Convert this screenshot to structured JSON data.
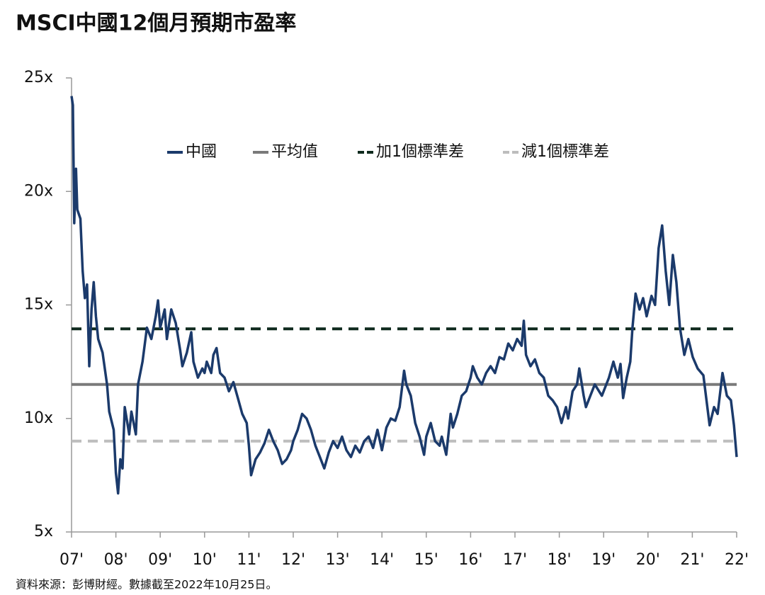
{
  "chart_data": {
    "type": "line",
    "title": "MSCI中國12個月預期市盈率",
    "note": "資料來源：彭博財經。數據截至2022年10月25日。",
    "xlim": [
      2007,
      2022
    ],
    "xticks": [
      {
        "value": 2007,
        "label": "07'"
      },
      {
        "value": 2008,
        "label": "08'"
      },
      {
        "value": 2009,
        "label": "09'"
      },
      {
        "value": 2010,
        "label": "10'"
      },
      {
        "value": 2011,
        "label": "11'"
      },
      {
        "value": 2012,
        "label": "12'"
      },
      {
        "value": 2013,
        "label": "13'"
      },
      {
        "value": 2014,
        "label": "14'"
      },
      {
        "value": 2015,
        "label": "15'"
      },
      {
        "value": 2016,
        "label": "16'"
      },
      {
        "value": 2017,
        "label": "17'"
      },
      {
        "value": 2018,
        "label": "18'"
      },
      {
        "value": 2019,
        "label": "19'"
      },
      {
        "value": 2020,
        "label": "20'"
      },
      {
        "value": 2021,
        "label": "21'"
      },
      {
        "value": 2022,
        "label": "22'"
      }
    ],
    "ylim": [
      5,
      25
    ],
    "yticks": [
      {
        "value": 5,
        "label": "5x"
      },
      {
        "value": 10,
        "label": "10x"
      },
      {
        "value": 15,
        "label": "15x"
      },
      {
        "value": 20,
        "label": "20x"
      },
      {
        "value": 25,
        "label": "25x"
      }
    ],
    "legend": "top",
    "series": [
      {
        "name": "中國",
        "color": "#1b3a6b",
        "dash": false,
        "x": [
          2007.0,
          2007.03,
          2007.06,
          2007.1,
          2007.13,
          2007.2,
          2007.25,
          2007.3,
          2007.35,
          2007.4,
          2007.45,
          2007.5,
          2007.55,
          2007.6,
          2007.7,
          2007.8,
          2007.85,
          2007.95,
          2008.0,
          2008.05,
          2008.1,
          2008.15,
          2008.2,
          2008.3,
          2008.35,
          2008.45,
          2008.5,
          2008.6,
          2008.7,
          2008.8,
          2008.9,
          2008.95,
          2009.0,
          2009.1,
          2009.15,
          2009.25,
          2009.35,
          2009.45,
          2009.5,
          2009.6,
          2009.7,
          2009.75,
          2009.85,
          2009.95,
          2010.0,
          2010.05,
          2010.15,
          2010.2,
          2010.27,
          2010.35,
          2010.45,
          2010.55,
          2010.65,
          2010.75,
          2010.85,
          2010.95,
          2011.0,
          2011.05,
          2011.15,
          2011.25,
          2011.35,
          2011.45,
          2011.55,
          2011.65,
          2011.75,
          2011.85,
          2011.95,
          2012.0,
          2012.1,
          2012.2,
          2012.3,
          2012.4,
          2012.5,
          2012.6,
          2012.7,
          2012.8,
          2012.9,
          2013.0,
          2013.1,
          2013.2,
          2013.3,
          2013.4,
          2013.5,
          2013.6,
          2013.7,
          2013.8,
          2013.9,
          2014.0,
          2014.1,
          2014.2,
          2014.3,
          2014.4,
          2014.5,
          2014.55,
          2014.65,
          2014.75,
          2014.85,
          2014.95,
          2015.0,
          2015.1,
          2015.2,
          2015.3,
          2015.35,
          2015.45,
          2015.55,
          2015.6,
          2015.7,
          2015.8,
          2015.9,
          2016.0,
          2016.05,
          2016.15,
          2016.25,
          2016.35,
          2016.45,
          2016.55,
          2016.65,
          2016.75,
          2016.85,
          2016.95,
          2017.05,
          2017.15,
          2017.2,
          2017.25,
          2017.35,
          2017.45,
          2017.55,
          2017.65,
          2017.75,
          2017.85,
          2017.95,
          2018.05,
          2018.15,
          2018.2,
          2018.3,
          2018.4,
          2018.45,
          2018.55,
          2018.6,
          2018.7,
          2018.8,
          2018.96,
          2019.12,
          2019.22,
          2019.32,
          2019.38,
          2019.44,
          2019.52,
          2019.6,
          2019.65,
          2019.72,
          2019.81,
          2019.89,
          2019.97,
          2020.08,
          2020.16,
          2020.24,
          2020.32,
          2020.4,
          2020.48,
          2020.56,
          2020.64,
          2020.72,
          2020.82,
          2020.91,
          2021.01,
          2021.12,
          2021.25,
          2021.39,
          2021.49,
          2021.57,
          2021.68,
          2021.78,
          2021.87,
          2021.94,
          2022.0
        ],
        "values": [
          24.2,
          23.8,
          18.6,
          21.0,
          19.2,
          18.8,
          16.5,
          15.3,
          15.9,
          12.3,
          14.8,
          16.0,
          14.5,
          13.5,
          12.9,
          11.5,
          10.3,
          9.5,
          7.6,
          6.7,
          8.2,
          7.8,
          10.5,
          9.3,
          10.3,
          9.3,
          11.5,
          12.5,
          14.0,
          13.5,
          14.5,
          15.2,
          14.0,
          14.8,
          13.5,
          14.8,
          14.2,
          13.0,
          12.3,
          12.9,
          13.8,
          12.5,
          11.8,
          12.2,
          12.0,
          12.5,
          12.0,
          12.8,
          13.1,
          12.0,
          11.8,
          11.2,
          11.6,
          10.9,
          10.2,
          9.8,
          8.8,
          7.5,
          8.2,
          8.5,
          8.9,
          9.5,
          9.0,
          8.6,
          8.0,
          8.2,
          8.6,
          9.0,
          9.5,
          10.2,
          10.0,
          9.5,
          8.8,
          8.3,
          7.8,
          8.5,
          9.0,
          8.7,
          9.2,
          8.6,
          8.3,
          8.8,
          8.5,
          9.0,
          9.2,
          8.7,
          9.5,
          8.6,
          9.6,
          10.0,
          9.9,
          10.5,
          12.1,
          11.5,
          11.0,
          9.8,
          9.2,
          8.4,
          9.2,
          9.8,
          9.0,
          8.8,
          9.2,
          8.4,
          10.2,
          9.6,
          10.2,
          11.0,
          11.2,
          11.8,
          12.3,
          11.8,
          11.5,
          12.0,
          12.3,
          12.0,
          12.7,
          12.6,
          13.3,
          13.0,
          13.5,
          13.2,
          14.3,
          12.8,
          12.3,
          12.6,
          12.0,
          11.8,
          11.0,
          10.8,
          10.5,
          9.8,
          10.5,
          10.0,
          11.2,
          11.5,
          12.2,
          11.0,
          10.5,
          11.0,
          11.5,
          11.0,
          11.8,
          12.5,
          11.8,
          12.4,
          10.9,
          11.8,
          12.5,
          14.0,
          15.5,
          14.8,
          15.3,
          14.5,
          15.4,
          15.0,
          17.5,
          18.5,
          16.5,
          15.0,
          17.2,
          16.0,
          14.0,
          12.8,
          13.5,
          12.7,
          12.2,
          11.9,
          9.7,
          10.5,
          10.2,
          12.0,
          11.0,
          10.8,
          9.7,
          8.3
        ]
      },
      {
        "name": "平均值",
        "color": "#7a7a7a",
        "dash": false,
        "x": [
          2007,
          2022
        ],
        "values": [
          11.5,
          11.5
        ]
      },
      {
        "name": "加1個標準差",
        "color": "#0f2a1e",
        "dash": true,
        "x": [
          2007,
          2022
        ],
        "values": [
          13.95,
          13.95
        ]
      },
      {
        "name": "減1個標準差",
        "color": "#bdbdbd",
        "dash": true,
        "x": [
          2007,
          2022
        ],
        "values": [
          9.0,
          9.0
        ]
      }
    ]
  }
}
